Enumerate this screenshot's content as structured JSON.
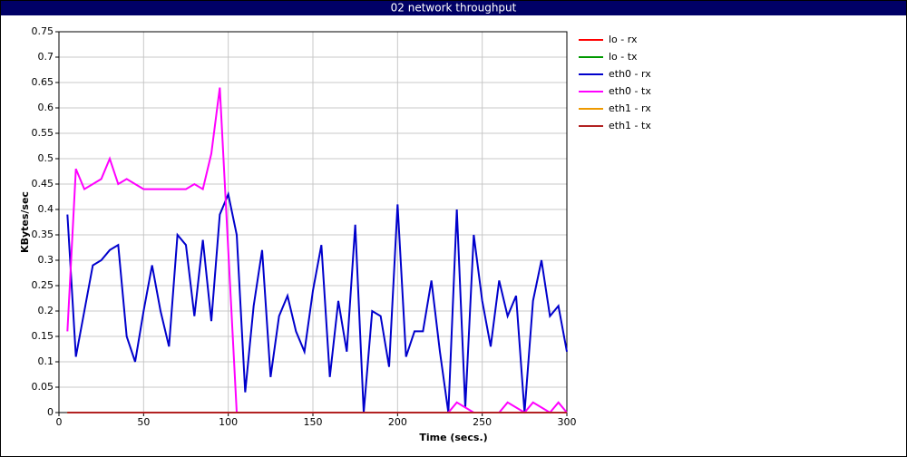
{
  "chart_data": {
    "type": "line",
    "title": "02 network throughput",
    "x_label": "Time (secs.)",
    "y_label": "KBytes/sec",
    "xlim": [
      0,
      300
    ],
    "xticks": [
      0,
      50,
      100,
      150,
      200,
      250,
      300
    ],
    "ylim": [
      0,
      0.75
    ],
    "yticks": [
      0,
      0.05,
      0.1,
      0.15,
      0.2,
      0.25,
      0.3,
      0.35,
      0.4,
      0.45,
      0.5,
      0.55,
      0.6,
      0.65,
      0.7,
      0.75
    ],
    "grid": true,
    "legend": "right",
    "x": [
      5,
      10,
      15,
      20,
      25,
      30,
      35,
      40,
      45,
      50,
      55,
      60,
      65,
      70,
      75,
      80,
      85,
      90,
      95,
      100,
      105,
      110,
      115,
      120,
      125,
      130,
      135,
      140,
      145,
      150,
      155,
      160,
      165,
      170,
      175,
      180,
      185,
      190,
      195,
      200,
      205,
      210,
      215,
      220,
      225,
      230,
      235,
      240,
      245,
      250,
      255,
      260,
      265,
      270,
      275,
      280,
      285,
      290,
      295,
      300
    ],
    "series": [
      {
        "name": "lo - rx",
        "color": "#ff0000",
        "values": [
          0,
          0,
          0,
          0,
          0,
          0,
          0,
          0,
          0,
          0,
          0,
          0,
          0,
          0,
          0,
          0,
          0,
          0,
          0,
          0,
          0,
          0,
          0,
          0,
          0,
          0,
          0,
          0,
          0,
          0,
          0,
          0,
          0,
          0,
          0,
          0,
          0,
          0,
          0,
          0,
          0,
          0,
          0,
          0,
          0,
          0,
          0,
          0,
          0,
          0,
          0,
          0,
          0,
          0,
          0,
          0,
          0,
          0,
          0,
          0
        ]
      },
      {
        "name": "lo - tx",
        "color": "#009900",
        "values": [
          0,
          0,
          0,
          0,
          0,
          0,
          0,
          0,
          0,
          0,
          0,
          0,
          0,
          0,
          0,
          0,
          0,
          0,
          0,
          0,
          0,
          0,
          0,
          0,
          0,
          0,
          0,
          0,
          0,
          0,
          0,
          0,
          0,
          0,
          0,
          0,
          0,
          0,
          0,
          0,
          0,
          0,
          0,
          0,
          0,
          0,
          0,
          0,
          0,
          0,
          0,
          0,
          0,
          0,
          0,
          0,
          0,
          0,
          0,
          0
        ]
      },
      {
        "name": "eth0 - rx",
        "color": "#0000cc",
        "values": [
          0.39,
          0.11,
          0.2,
          0.29,
          0.3,
          0.32,
          0.33,
          0.15,
          0.1,
          0.2,
          0.29,
          0.2,
          0.13,
          0.35,
          0.33,
          0.19,
          0.34,
          0.18,
          0.39,
          0.43,
          0.35,
          0.04,
          0.21,
          0.32,
          0.07,
          0.19,
          0.23,
          0.16,
          0.12,
          0.24,
          0.33,
          0.07,
          0.22,
          0.12,
          0.37,
          0,
          0.2,
          0.19,
          0.09,
          0.41,
          0.11,
          0.16,
          0.16,
          0.26,
          0.12,
          0,
          0.4,
          0.01,
          0.35,
          0.22,
          0.13,
          0.26,
          0.19,
          0.23,
          0,
          0.22,
          0.3,
          0.19,
          0.21,
          0.12
        ]
      },
      {
        "name": "eth0 - tx",
        "color": "#ff00ff",
        "values": [
          0.16,
          0.48,
          0.44,
          0.45,
          0.46,
          0.5,
          0.45,
          0.46,
          0.45,
          0.44,
          0.44,
          0.44,
          0.44,
          0.44,
          0.44,
          0.45,
          0.44,
          0.51,
          0.64,
          0.32,
          0,
          0,
          0,
          0,
          0,
          0,
          0,
          0,
          0,
          0,
          0,
          0,
          0,
          0,
          0,
          0,
          0,
          0,
          0,
          0,
          0,
          0,
          0,
          0,
          0,
          0,
          0.02,
          0.01,
          0,
          0,
          0,
          0,
          0.02,
          0.01,
          0,
          0.02,
          0.01,
          0,
          0.02,
          0
        ]
      },
      {
        "name": "eth1 - rx",
        "color": "#ee9900",
        "values": [
          0,
          0,
          0,
          0,
          0,
          0,
          0,
          0,
          0,
          0,
          0,
          0,
          0,
          0,
          0,
          0,
          0,
          0,
          0,
          0,
          0,
          0,
          0,
          0,
          0,
          0,
          0,
          0,
          0,
          0,
          0,
          0,
          0,
          0,
          0,
          0,
          0,
          0,
          0,
          0,
          0,
          0,
          0,
          0,
          0,
          0,
          0,
          0,
          0,
          0,
          0,
          0,
          0,
          0,
          0,
          0,
          0,
          0,
          0,
          0
        ]
      },
      {
        "name": "eth1 - tx",
        "color": "#b22222",
        "values": [
          0,
          0,
          0,
          0,
          0,
          0,
          0,
          0,
          0,
          0,
          0,
          0,
          0,
          0,
          0,
          0,
          0,
          0,
          0,
          0,
          0,
          0,
          0,
          0,
          0,
          0,
          0,
          0,
          0,
          0,
          0,
          0,
          0,
          0,
          0,
          0,
          0,
          0,
          0,
          0,
          0,
          0,
          0,
          0,
          0,
          0,
          0,
          0,
          0,
          0,
          0,
          0,
          0,
          0,
          0,
          0,
          0,
          0,
          0,
          0
        ]
      }
    ]
  }
}
